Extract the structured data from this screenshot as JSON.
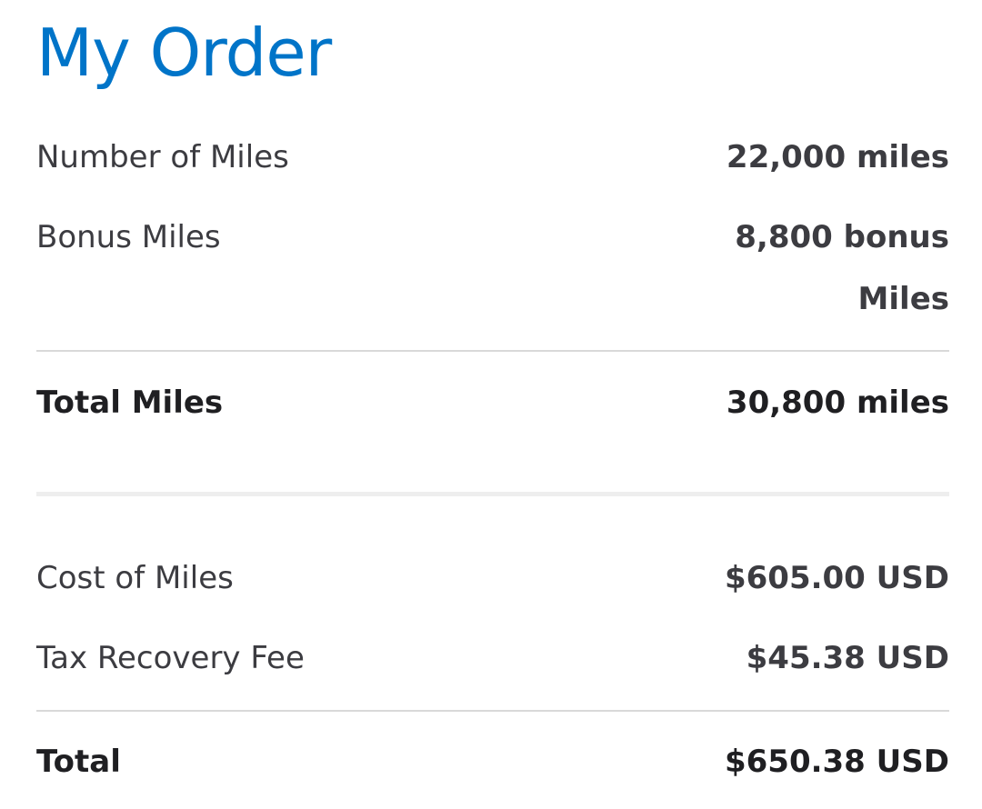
{
  "title": "My Order",
  "miles": [
    {
      "label": "Number of Miles",
      "value": "22,000 miles"
    },
    {
      "label": "Bonus Miles",
      "value": "8,800 bonus Miles"
    }
  ],
  "total_miles": {
    "label": "Total Miles",
    "value": "30,800 miles"
  },
  "costs": [
    {
      "label": "Cost of Miles",
      "value": "$605.00 USD"
    },
    {
      "label": "Tax Recovery Fee",
      "value": "$45.38 USD"
    }
  ],
  "total": {
    "label": "Total",
    "value": "$650.38 USD"
  },
  "colors": {
    "accent": "#0074c8",
    "text": "#3c3c41"
  }
}
